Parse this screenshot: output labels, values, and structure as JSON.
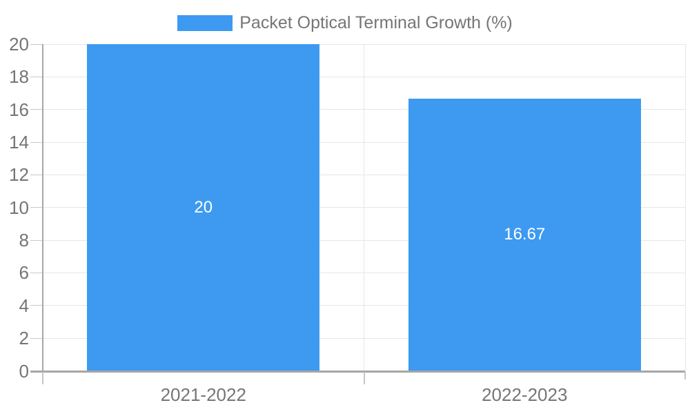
{
  "legend": {
    "label": "Packet Optical Terminal Growth (%)"
  },
  "colors": {
    "bar": "#3d9af0",
    "axis_text": "#757575",
    "grid": "#e6e6e6",
    "axis_line": "#a6a6a6",
    "tick_extension": "#c9c9c9",
    "value_label": "#ffffff",
    "background": "#ffffff"
  },
  "chart_data": {
    "type": "bar",
    "title": "Packet Optical Terminal Growth (%)",
    "categories": [
      "2021-2022",
      "2022-2023"
    ],
    "values": [
      20,
      16.67
    ],
    "value_labels": [
      "20",
      "16.67"
    ],
    "yticks": [
      "0",
      "2",
      "4",
      "6",
      "8",
      "10",
      "12",
      "14",
      "16",
      "18",
      "20"
    ],
    "ylim": [
      0,
      20
    ],
    "xlabel": "",
    "ylabel": "",
    "grid": true,
    "legend_position": "top-center",
    "bar_color": "#3d9af0"
  }
}
